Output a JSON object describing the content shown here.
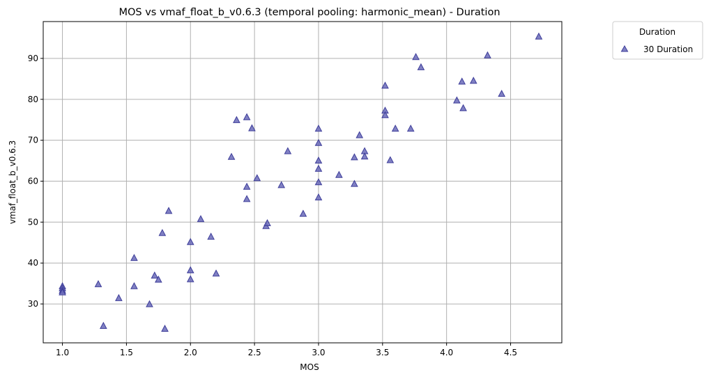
{
  "chart_data": {
    "type": "scatter",
    "title": "MOS vs vmaf_float_b_v0.6.3 (temporal pooling: harmonic_mean) - Duration",
    "xlabel": "MOS",
    "ylabel": "vmaf_float_b_v0.6.3",
    "xlim": [
      0.85,
      4.9
    ],
    "ylim": [
      20.5,
      99
    ],
    "xticks": [
      1.0,
      1.5,
      2.0,
      2.5,
      3.0,
      3.5,
      4.0,
      4.5
    ],
    "xtick_labels": [
      "1.0",
      "1.5",
      "2.0",
      "2.5",
      "3.0",
      "3.5",
      "4.0",
      "4.5"
    ],
    "yticks": [
      30,
      40,
      50,
      60,
      70,
      80,
      90
    ],
    "ytick_labels": [
      "30",
      "40",
      "50",
      "60",
      "70",
      "80",
      "90"
    ],
    "grid": true,
    "legend": {
      "title": "Duration",
      "placement": "outside-top-right"
    },
    "marker": "triangle",
    "color": "#6a6ab8",
    "edge_color": "#3d3d99",
    "series": [
      {
        "name": "30 Duration",
        "points": [
          [
            1.0,
            34.3
          ],
          [
            1.0,
            33.8
          ],
          [
            1.0,
            33.2
          ],
          [
            1.0,
            32.8
          ],
          [
            1.28,
            34.8
          ],
          [
            1.32,
            24.6
          ],
          [
            1.44,
            31.4
          ],
          [
            1.56,
            41.2
          ],
          [
            1.56,
            34.3
          ],
          [
            1.68,
            29.9
          ],
          [
            1.72,
            36.9
          ],
          [
            1.75,
            35.9
          ],
          [
            1.78,
            47.3
          ],
          [
            1.8,
            23.9
          ],
          [
            1.83,
            52.7
          ],
          [
            2.0,
            45.1
          ],
          [
            2.0,
            38.2
          ],
          [
            2.0,
            36.0
          ],
          [
            2.08,
            50.7
          ],
          [
            2.16,
            46.4
          ],
          [
            2.2,
            37.4
          ],
          [
            2.32,
            65.9
          ],
          [
            2.36,
            74.9
          ],
          [
            2.44,
            75.6
          ],
          [
            2.44,
            58.6
          ],
          [
            2.44,
            55.6
          ],
          [
            2.48,
            72.9
          ],
          [
            2.52,
            60.7
          ],
          [
            2.59,
            49.0
          ],
          [
            2.6,
            49.7
          ],
          [
            2.71,
            59.0
          ],
          [
            2.76,
            67.3
          ],
          [
            2.88,
            52.0
          ],
          [
            3.0,
            72.8
          ],
          [
            3.0,
            69.3
          ],
          [
            3.0,
            65.0
          ],
          [
            3.0,
            63.0
          ],
          [
            3.0,
            59.7
          ],
          [
            3.0,
            56.0
          ],
          [
            3.16,
            61.5
          ],
          [
            3.28,
            65.8
          ],
          [
            3.28,
            59.3
          ],
          [
            3.32,
            71.2
          ],
          [
            3.36,
            67.3
          ],
          [
            3.36,
            66.0
          ],
          [
            3.52,
            83.3
          ],
          [
            3.52,
            77.2
          ],
          [
            3.52,
            76.1
          ],
          [
            3.56,
            65.1
          ],
          [
            3.6,
            72.8
          ],
          [
            3.72,
            72.8
          ],
          [
            3.76,
            90.3
          ],
          [
            3.8,
            87.8
          ],
          [
            4.08,
            79.7
          ],
          [
            4.12,
            84.3
          ],
          [
            4.13,
            77.8
          ],
          [
            4.21,
            84.5
          ],
          [
            4.32,
            90.7
          ],
          [
            4.43,
            81.3
          ],
          [
            4.72,
            95.3
          ]
        ]
      }
    ]
  }
}
